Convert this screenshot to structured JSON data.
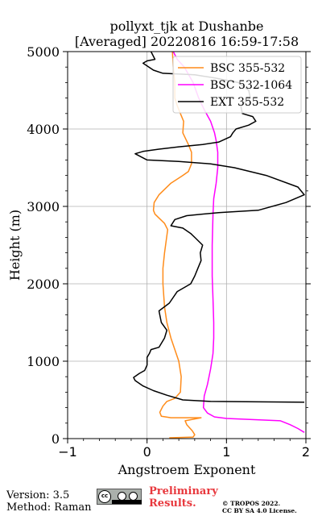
{
  "chart_data": {
    "type": "line",
    "title": [
      "pollyxt_tjk at Dushanbe",
      "[Averaged] 20220816 16:59-17:58"
    ],
    "xlabel": "Angstroem Exponent",
    "ylabel": "Height (m)",
    "xlim": [
      -1,
      2
    ],
    "ylim": [
      0,
      5000
    ],
    "xticks": [
      -1,
      0,
      1,
      2
    ],
    "yticks": [
      0,
      1000,
      2000,
      3000,
      4000,
      5000
    ],
    "xtick_labels": [
      "−1",
      "0",
      "1",
      "2"
    ],
    "ytick_labels": [
      "0",
      "1000",
      "2000",
      "3000",
      "4000",
      "5000"
    ],
    "grid": true,
    "legend_position": "top-right",
    "series": [
      {
        "name": "BSC 355-532",
        "color": "#ff8c1a",
        "points": [
          [
            0.28,
            10
          ],
          [
            0.58,
            20
          ],
          [
            0.6,
            50
          ],
          [
            0.57,
            100
          ],
          [
            0.5,
            180
          ],
          [
            0.48,
            230
          ],
          [
            0.68,
            270
          ],
          [
            0.3,
            270
          ],
          [
            0.18,
            290
          ],
          [
            0.16,
            340
          ],
          [
            0.2,
            420
          ],
          [
            0.25,
            480
          ],
          [
            0.35,
            520
          ],
          [
            0.42,
            600
          ],
          [
            0.43,
            800
          ],
          [
            0.4,
            1000
          ],
          [
            0.3,
            1300
          ],
          [
            0.25,
            1500
          ],
          [
            0.22,
            1700
          ],
          [
            0.2,
            2000
          ],
          [
            0.2,
            2200
          ],
          [
            0.22,
            2400
          ],
          [
            0.26,
            2700
          ],
          [
            0.22,
            2780
          ],
          [
            0.15,
            2850
          ],
          [
            0.1,
            2900
          ],
          [
            0.08,
            2950
          ],
          [
            0.09,
            3050
          ],
          [
            0.15,
            3150
          ],
          [
            0.3,
            3300
          ],
          [
            0.45,
            3400
          ],
          [
            0.52,
            3450
          ],
          [
            0.56,
            3550
          ],
          [
            0.56,
            3700
          ],
          [
            0.52,
            3800
          ],
          [
            0.45,
            3950
          ],
          [
            0.46,
            4100
          ],
          [
            0.42,
            4200
          ],
          [
            0.38,
            4300
          ],
          [
            0.35,
            4400
          ],
          [
            0.35,
            4600
          ],
          [
            0.33,
            4800
          ],
          [
            0.32,
            5000
          ]
        ]
      },
      {
        "name": "BSC 532-1064",
        "color": "#ff00ff",
        "points": [
          [
            1.98,
            80
          ],
          [
            1.9,
            130
          ],
          [
            1.8,
            180
          ],
          [
            1.68,
            230
          ],
          [
            1.0,
            260
          ],
          [
            0.85,
            280
          ],
          [
            0.76,
            330
          ],
          [
            0.71,
            400
          ],
          [
            0.72,
            550
          ],
          [
            0.76,
            700
          ],
          [
            0.8,
            900
          ],
          [
            0.83,
            1100
          ],
          [
            0.84,
            1300
          ],
          [
            0.84,
            1500
          ],
          [
            0.83,
            1800
          ],
          [
            0.82,
            2100
          ],
          [
            0.82,
            2500
          ],
          [
            0.83,
            2900
          ],
          [
            0.84,
            3100
          ],
          [
            0.87,
            3300
          ],
          [
            0.89,
            3500
          ],
          [
            0.89,
            3700
          ],
          [
            0.87,
            3850
          ],
          [
            0.85,
            3950
          ],
          [
            0.8,
            4100
          ],
          [
            0.72,
            4250
          ],
          [
            0.65,
            4400
          ],
          [
            0.58,
            4600
          ],
          [
            0.47,
            4800
          ],
          [
            0.38,
            4900
          ],
          [
            0.33,
            5000
          ]
        ]
      },
      {
        "name": "EXT 355-532",
        "color": "#000000",
        "points": [
          [
            1.98,
            470
          ],
          [
            0.8,
            480
          ],
          [
            0.45,
            500
          ],
          [
            0.25,
            560
          ],
          [
            0.08,
            620
          ],
          [
            -0.05,
            680
          ],
          [
            -0.15,
            750
          ],
          [
            -0.17,
            790
          ],
          [
            -0.1,
            840
          ],
          [
            -0.03,
            880
          ],
          [
            0.0,
            950
          ],
          [
            0.0,
            1050
          ],
          [
            0.03,
            1100
          ],
          [
            0.05,
            1150
          ],
          [
            0.15,
            1180
          ],
          [
            0.22,
            1300
          ],
          [
            0.25,
            1400
          ],
          [
            0.18,
            1500
          ],
          [
            0.15,
            1650
          ],
          [
            0.28,
            1750
          ],
          [
            0.38,
            1900
          ],
          [
            0.55,
            2000
          ],
          [
            0.6,
            2100
          ],
          [
            0.64,
            2200
          ],
          [
            0.68,
            2300
          ],
          [
            0.67,
            2400
          ],
          [
            0.7,
            2500
          ],
          [
            0.6,
            2600
          ],
          [
            0.55,
            2650
          ],
          [
            0.45,
            2720
          ],
          [
            0.3,
            2750
          ],
          [
            0.35,
            2830
          ],
          [
            0.5,
            2880
          ],
          [
            0.9,
            2920
          ],
          [
            1.4,
            2950
          ],
          [
            1.75,
            3050
          ],
          [
            1.98,
            3150
          ],
          [
            1.9,
            3250
          ],
          [
            1.5,
            3400
          ],
          [
            1.1,
            3500
          ],
          [
            0.8,
            3550
          ],
          [
            0.4,
            3580
          ],
          [
            0.0,
            3600
          ],
          [
            -0.15,
            3680
          ],
          [
            -0.05,
            3710
          ],
          [
            0.15,
            3740
          ],
          [
            0.4,
            3770
          ],
          [
            0.7,
            3800
          ],
          [
            0.9,
            3830
          ],
          [
            1.05,
            3900
          ],
          [
            1.08,
            3950
          ],
          [
            1.12,
            4000
          ],
          [
            1.28,
            4050
          ],
          [
            1.37,
            4100
          ],
          [
            1.33,
            4160
          ],
          [
            1.2,
            4200
          ],
          [
            1.18,
            4300
          ],
          [
            1.3,
            4400
          ],
          [
            1.28,
            4500
          ],
          [
            1.15,
            4600
          ],
          [
            0.85,
            4660
          ],
          [
            0.6,
            4700
          ],
          [
            0.2,
            4720
          ],
          [
            0.08,
            4760
          ],
          [
            -0.05,
            4850
          ],
          [
            0.0,
            4880
          ],
          [
            0.1,
            4900
          ],
          [
            0.05,
            5000
          ]
        ]
      }
    ]
  },
  "footer": {
    "version": "Version: 3.5",
    "method": "Method: Raman",
    "preliminary": [
      "Preliminary",
      "Results."
    ],
    "copyright": [
      "© TROPOS 2022.",
      "CC BY SA 4.0 License."
    ],
    "license_badge_text": "cc"
  }
}
